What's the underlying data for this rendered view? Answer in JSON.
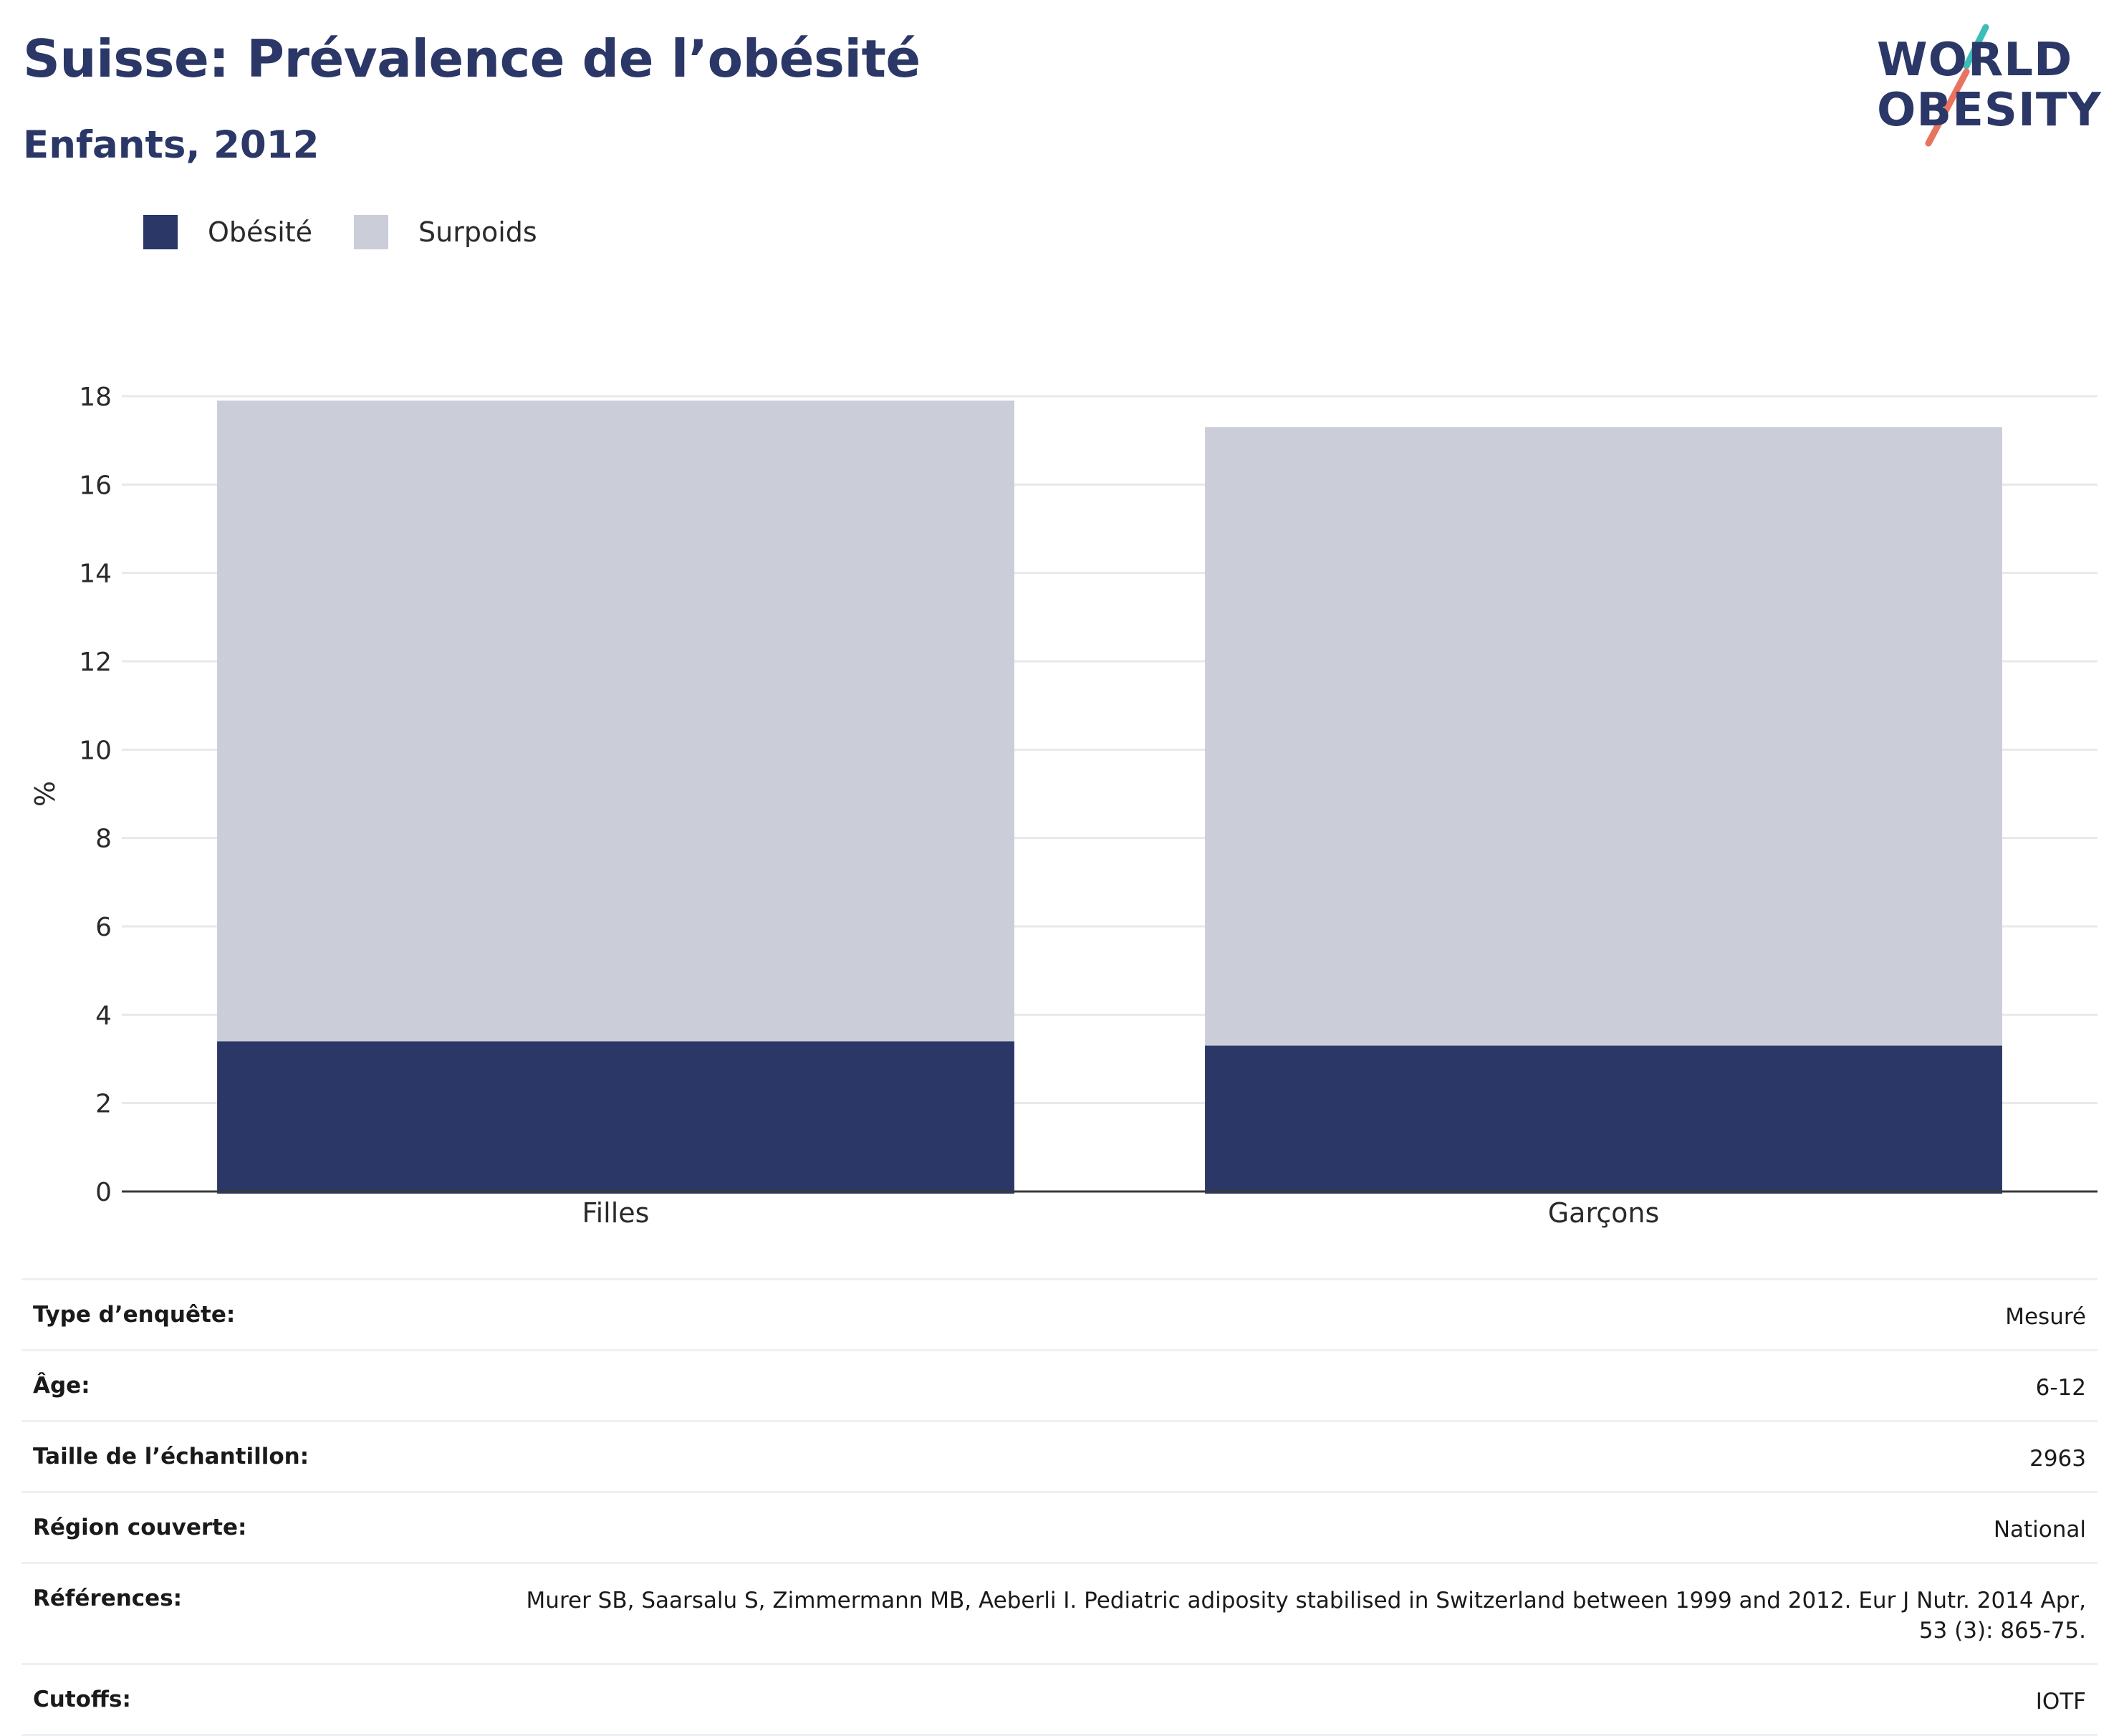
{
  "header": {
    "title": "Suisse: Prévalence de l’obésité",
    "subtitle": "Enfants, 2012",
    "logo_line1": "WORLD",
    "logo_line2": "OBESITY"
  },
  "colors": {
    "obesity": "#2b3766",
    "overweight": "#cbcdd9",
    "title": "#2b3766",
    "logo_teal": "#3dbdb9",
    "logo_coral": "#e8735f"
  },
  "legend": [
    {
      "label": "Obésité",
      "color": "#2b3766"
    },
    {
      "label": "Surpoids",
      "color": "#cbcdd9"
    }
  ],
  "chart_data": {
    "type": "bar",
    "stacked": true,
    "categories": [
      "Filles",
      "Garçons"
    ],
    "series": [
      {
        "name": "Obésité",
        "values": [
          3.4,
          3.3
        ]
      },
      {
        "name": "Surpoids",
        "values": [
          14.5,
          14.0
        ]
      }
    ],
    "ylabel": "%",
    "ylim": [
      0,
      18
    ],
    "yticks": [
      0,
      2,
      4,
      6,
      8,
      10,
      12,
      14,
      16,
      18
    ],
    "grid": true,
    "legend_position": "top-left"
  },
  "info": {
    "rows": [
      {
        "label": "Type d’enquête:",
        "value": "Mesuré"
      },
      {
        "label": "Âge:",
        "value": "6-12"
      },
      {
        "label": "Taille de l’échantillon:",
        "value": "2963"
      },
      {
        "label": "Région couverte:",
        "value": "National"
      },
      {
        "label": "Références:",
        "value": "Murer SB, Saarsalu S, Zimmermann MB, Aeberli I. Pediatric adiposity stabilised in Switzerland between 1999 and 2012. Eur J Nutr. 2014 Apr, 53 (3): 865-75."
      },
      {
        "label": "Cutoffs:",
        "value": "IOTF"
      }
    ]
  }
}
